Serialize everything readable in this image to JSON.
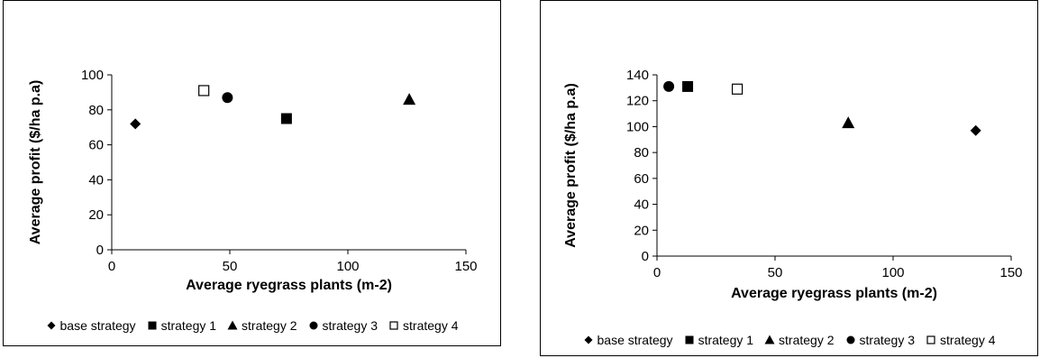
{
  "chart_data": [
    {
      "type": "scatter",
      "title": "",
      "xlabel": "Average ryegrass plants (m-2)",
      "ylabel": "Average  profit ($/ha p.a)",
      "xlim": [
        0,
        150
      ],
      "ylim": [
        0,
        100
      ],
      "xticks": [
        0,
        50,
        100,
        150
      ],
      "yticks": [
        0,
        20,
        40,
        60,
        80,
        100
      ],
      "grid": false,
      "legend_position": "bottom",
      "series": [
        {
          "name": "base strategy",
          "marker": "diamond",
          "points": [
            {
              "x": 10,
              "y": 72
            }
          ]
        },
        {
          "name": "strategy 1",
          "marker": "square",
          "points": [
            {
              "x": 74,
              "y": 75
            }
          ]
        },
        {
          "name": "strategy 2",
          "marker": "triangle",
          "points": [
            {
              "x": 126,
              "y": 86
            }
          ]
        },
        {
          "name": "strategy 3",
          "marker": "circle",
          "points": [
            {
              "x": 49,
              "y": 87
            }
          ]
        },
        {
          "name": "strategy 4",
          "marker": "open-square",
          "points": [
            {
              "x": 39,
              "y": 91
            }
          ]
        }
      ]
    },
    {
      "type": "scatter",
      "title": "",
      "xlabel": "Average ryegrass plants (m-2)",
      "ylabel": "Average  profit ($/ha p.a)",
      "xlim": [
        0,
        150
      ],
      "ylim": [
        0,
        140
      ],
      "xticks": [
        0,
        50,
        100,
        150
      ],
      "yticks": [
        0,
        20,
        40,
        60,
        80,
        100,
        120,
        140
      ],
      "grid": false,
      "legend_position": "bottom",
      "series": [
        {
          "name": "base strategy",
          "marker": "diamond",
          "points": [
            {
              "x": 135,
              "y": 97
            }
          ]
        },
        {
          "name": "strategy 1",
          "marker": "square",
          "points": [
            {
              "x": 13,
              "y": 131
            }
          ]
        },
        {
          "name": "strategy 2",
          "marker": "triangle",
          "points": [
            {
              "x": 81,
              "y": 103
            }
          ]
        },
        {
          "name": "strategy 3",
          "marker": "circle",
          "points": [
            {
              "x": 5,
              "y": 131
            }
          ]
        },
        {
          "name": "strategy 4",
          "marker": "open-square",
          "points": [
            {
              "x": 34,
              "y": 129
            }
          ]
        }
      ]
    }
  ]
}
